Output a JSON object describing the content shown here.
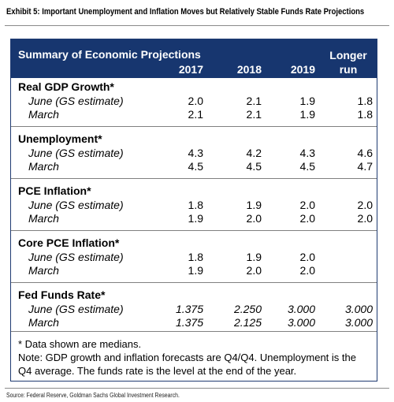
{
  "exhibit_title": "Exhibit 5: Important Unemployment and Inflation Moves but Relatively Stable Funds Rate Projections",
  "table": {
    "title": "Summary of Economic Projections",
    "columns": [
      "2017",
      "2018",
      "2019"
    ],
    "longer_run_line1": "Longer",
    "longer_run_line2": "run",
    "sections": [
      {
        "title": "Real GDP Growth*",
        "rows": [
          {
            "label": "June (GS estimate)",
            "values": [
              "2.0",
              "2.1",
              "1.9",
              "1.8"
            ]
          },
          {
            "label": "March",
            "values": [
              "2.1",
              "2.1",
              "1.9",
              "1.8"
            ]
          }
        ]
      },
      {
        "title": "Unemployment*",
        "rows": [
          {
            "label": "June (GS estimate)",
            "values": [
              "4.3",
              "4.2",
              "4.3",
              "4.6"
            ]
          },
          {
            "label": "March",
            "values": [
              "4.5",
              "4.5",
              "4.5",
              "4.7"
            ]
          }
        ]
      },
      {
        "title": "PCE Inflation*",
        "rows": [
          {
            "label": "June (GS estimate)",
            "values": [
              "1.8",
              "1.9",
              "2.0",
              "2.0"
            ]
          },
          {
            "label": "March",
            "values": [
              "1.9",
              "2.0",
              "2.0",
              "2.0"
            ]
          }
        ]
      },
      {
        "title": "Core PCE Inflation*",
        "rows": [
          {
            "label": "June (GS estimate)",
            "values": [
              "1.8",
              "1.9",
              "2.0",
              ""
            ]
          },
          {
            "label": "March",
            "values": [
              "1.9",
              "2.0",
              "2.0",
              ""
            ]
          }
        ]
      },
      {
        "title": "Fed Funds Rate*",
        "rows": [
          {
            "label": "June (GS estimate)",
            "values": [
              "1.375",
              "2.250",
              "3.000",
              "3.000"
            ]
          },
          {
            "label": "March",
            "values": [
              "1.375",
              "2.125",
              "3.000",
              "3.000"
            ]
          }
        ]
      }
    ],
    "notes": {
      "line1": "* Data shown are medians.",
      "line2": "Note: GDP growth and inflation forecasts are Q4/Q4.  Unemployment is the",
      "line3": "Q4 average.  The funds rate is the level at the end of the year."
    }
  },
  "source": "Source: Federal Reserve, Goldman Sachs Global Investment Research.",
  "colors": {
    "header_bg": "#17366f",
    "header_text": "#ffffff",
    "rule": "#8a8a8a"
  }
}
